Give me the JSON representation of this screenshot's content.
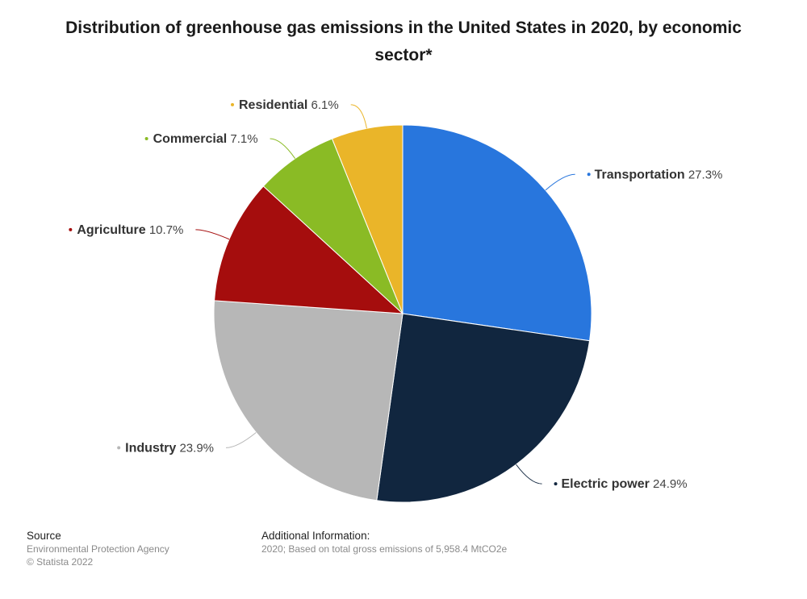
{
  "chart_data": {
    "type": "pie",
    "title": "Distribution of greenhouse gas emissions in the United States in 2020, by economic sector*",
    "slices": [
      {
        "label": "Transportation",
        "value": 27.3,
        "color": "#2876dd"
      },
      {
        "label": "Electric power",
        "value": 24.9,
        "color": "#11263f"
      },
      {
        "label": "Industry",
        "value": 23.9,
        "color": "#b7b7b7"
      },
      {
        "label": "Agriculture",
        "value": 10.7,
        "color": "#a50d0d"
      },
      {
        "label": "Commercial",
        "value": 7.1,
        "color": "#8abb25"
      },
      {
        "label": "Residential",
        "value": 6.1,
        "color": "#eab529"
      }
    ],
    "value_suffix": "%"
  },
  "footer": {
    "source_heading": "Source",
    "source_text": "Environmental Protection Agency",
    "copyright": "© Statista 2022",
    "info_heading": "Additional Information:",
    "info_text": "2020; Based on total gross emissions of 5,958.4 MtCO2e"
  }
}
